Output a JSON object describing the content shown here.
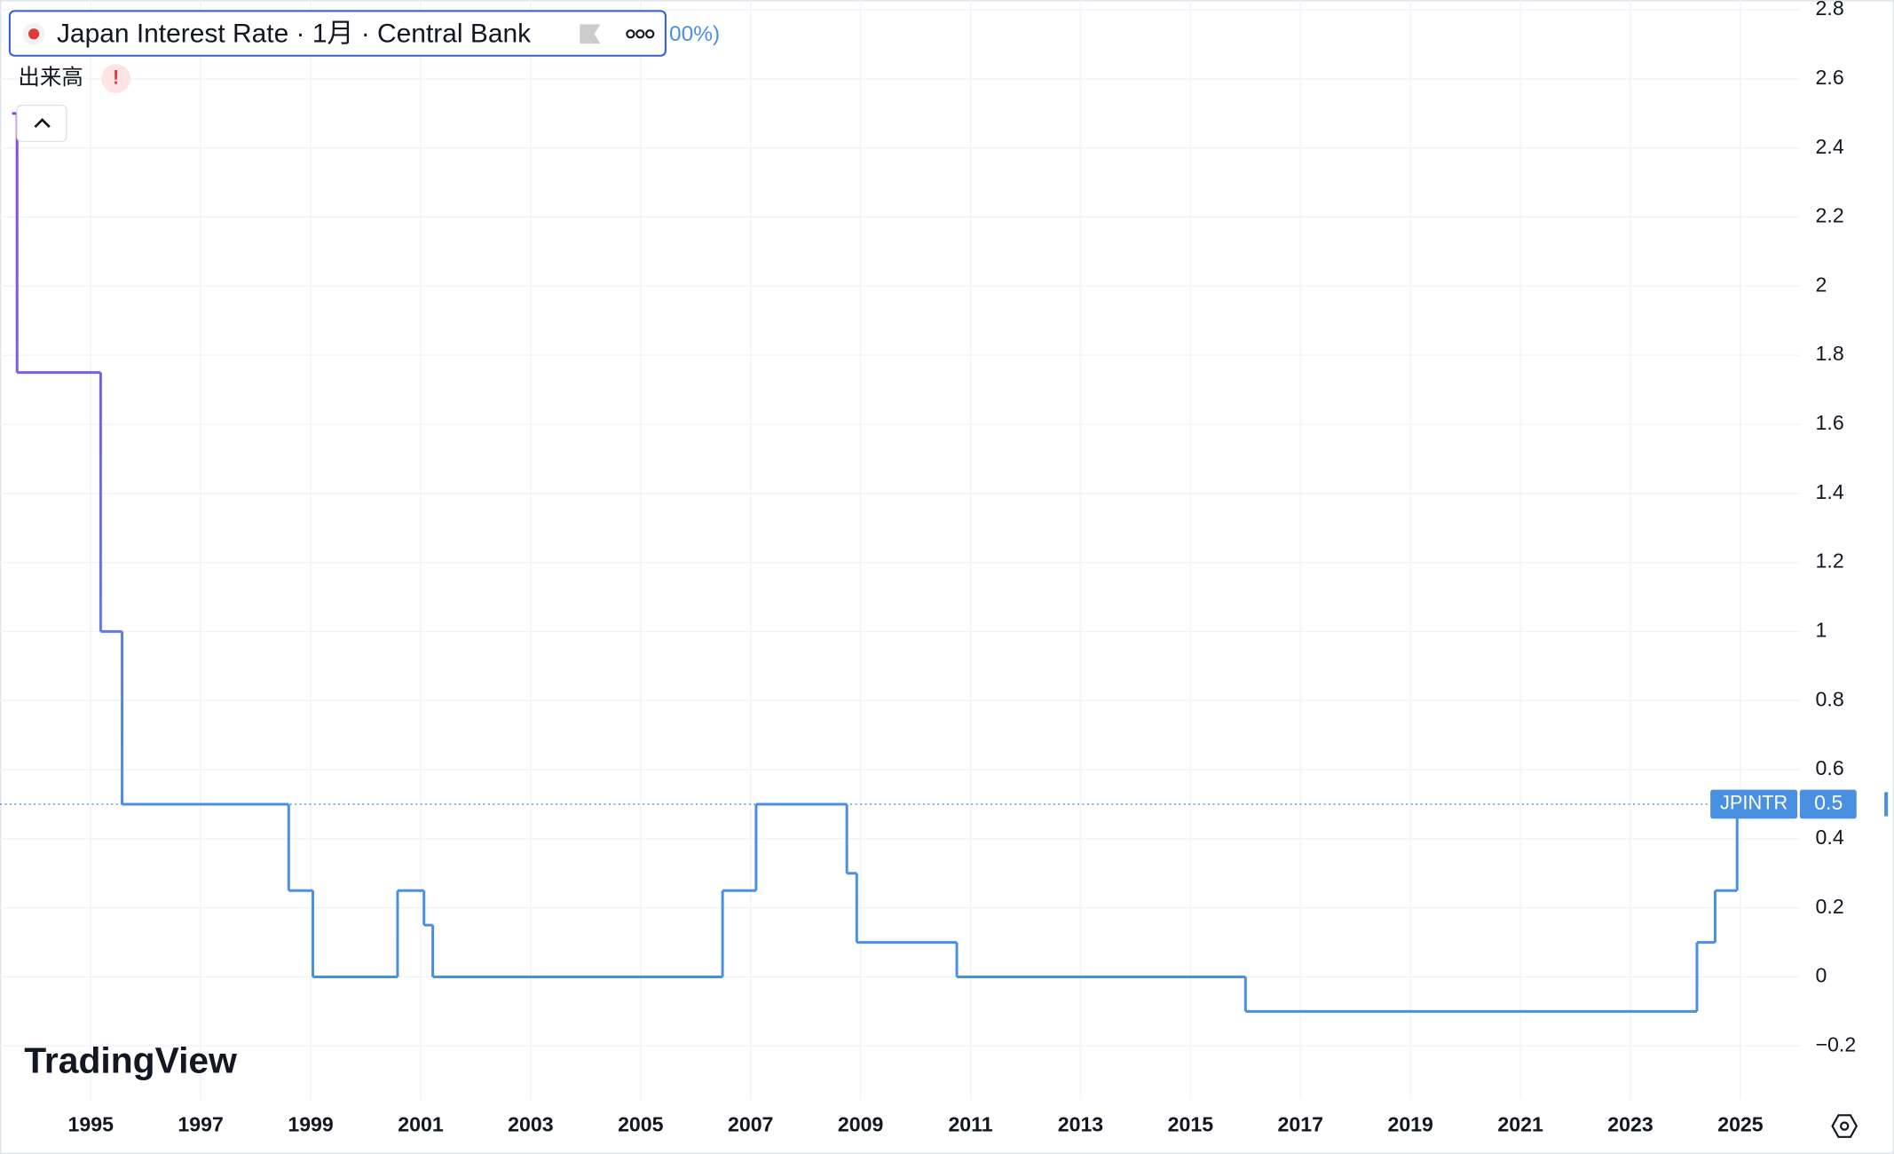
{
  "chart_data": {
    "type": "step-line",
    "title": "Japan Interest Rate · 1月 · Central Bank",
    "change_text": "00%)",
    "volume_label": "出来高",
    "warning": "!",
    "brand": "TradingView",
    "symbol": "JPINTR",
    "x": [
      1993.57,
      1993.66,
      1995.18,
      1995.57,
      1998.6,
      1999.04,
      2000.58,
      2001.06,
      2001.22,
      2006.49,
      2007.1,
      2008.75,
      2008.93,
      2010.75,
      2016.0,
      2024.21,
      2024.54,
      2024.94,
      2025.0
    ],
    "series": [
      {
        "name": "JPINTR",
        "colors": [
          "#9b3fe0",
          "#4a90e2"
        ],
        "values": [
          2.5,
          1.75,
          1.0,
          0.5,
          0.25,
          0,
          0.25,
          0.15,
          0,
          0.25,
          0.5,
          0.3,
          0.1,
          0,
          -0.1,
          0.1,
          0.25,
          0.5,
          0.5
        ]
      }
    ],
    "xlim": [
      1993.35,
      2026.08
    ],
    "xticks": [
      1995,
      1997,
      1999,
      2001,
      2003,
      2005,
      2007,
      2009,
      2011,
      2013,
      2015,
      2017,
      2019,
      2021,
      2023,
      2025
    ],
    "ylim": [
      -0.32,
      2.8
    ],
    "yticks": [
      {
        "value": -0.2,
        "label": "−0.2"
      },
      0,
      0.2,
      0.4,
      0.6,
      0.8,
      1,
      1.2,
      1.4,
      1.6,
      1.8,
      2,
      2.2,
      2.4,
      2.6,
      2.8
    ],
    "grid": true
  }
}
